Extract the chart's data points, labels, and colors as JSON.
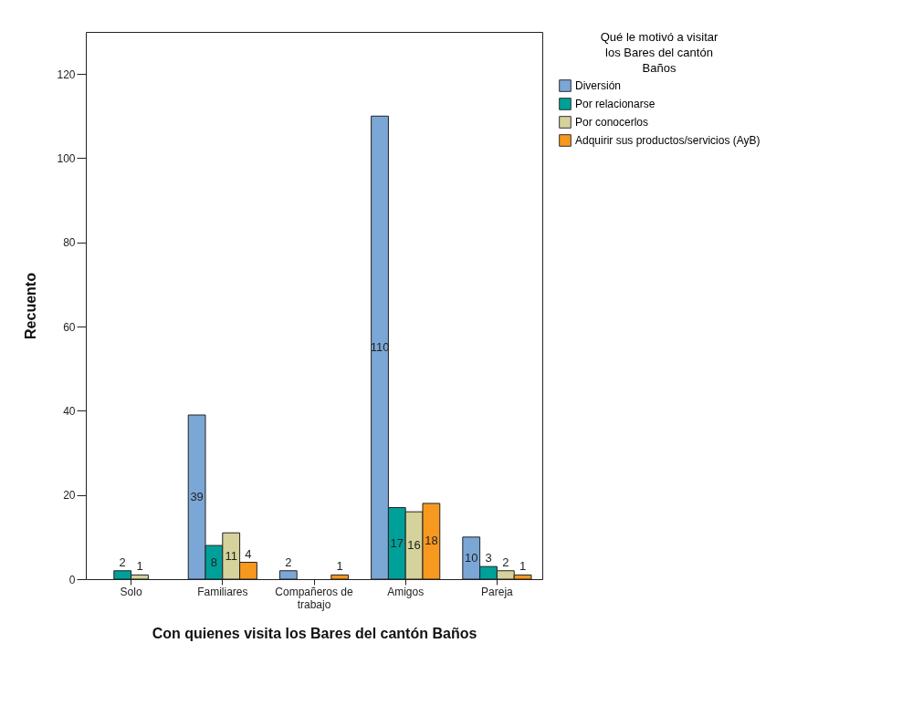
{
  "chart_data": {
    "type": "bar",
    "xlabel": "Con quienes visita los Bares del cantón Baños",
    "ylabel": "Recuento",
    "legend_title": "Qué le motivó a visitar los Bares del cantón Baños",
    "categories": [
      "Solo",
      "Familiares",
      "Compañeros de trabajo",
      "Amigos",
      "Pareja"
    ],
    "series": [
      {
        "name": "Diversión",
        "color": "#7ba7d7",
        "values": [
          null,
          39,
          2,
          110,
          10
        ]
      },
      {
        "name": "Por relacionarse",
        "color": "#00a09a",
        "values": [
          2,
          8,
          null,
          17,
          3
        ]
      },
      {
        "name": "Por conocerlos",
        "color": "#d5d29b",
        "values": [
          1,
          11,
          null,
          16,
          2
        ]
      },
      {
        "name": "Adquirir sus productos/servicios (AyB)",
        "color": "#f7991f",
        "values": [
          null,
          4,
          1,
          18,
          1
        ]
      }
    ],
    "ylim": [
      0,
      130
    ],
    "yticks": [
      0,
      20,
      40,
      60,
      80,
      100,
      120
    ],
    "grid": false,
    "legend": "right",
    "data_labels": true
  }
}
